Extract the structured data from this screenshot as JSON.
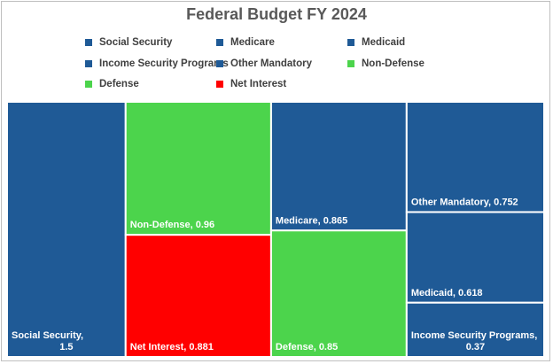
{
  "chart_data": {
    "type": "treemap",
    "title": "Federal Budget FY 2024",
    "legend_position": "top",
    "colors": {
      "mandatory": "#1f5a96",
      "discretionary": "#4cd44c",
      "interest": "#ff0000"
    },
    "series": [
      {
        "name": "Social Security",
        "value": 1.5,
        "label": "Social Security, 1.5",
        "color": "#1f5a96"
      },
      {
        "name": "Medicare",
        "value": 0.865,
        "label": "Medicare, 0.865",
        "color": "#1f5a96"
      },
      {
        "name": "Medicaid",
        "value": 0.618,
        "label": "Medicaid, 0.618",
        "color": "#1f5a96"
      },
      {
        "name": "Income Security Programs",
        "value": 0.37,
        "label": "Income Security Programs, 0.37",
        "color": "#1f5a96"
      },
      {
        "name": "Other Mandatory",
        "value": 0.752,
        "label": "Other Mandatory, 0.752",
        "color": "#1f5a96"
      },
      {
        "name": "Non-Defense",
        "value": 0.96,
        "label": "Non-Defense, 0.96",
        "color": "#4cd44c"
      },
      {
        "name": "Defense",
        "value": 0.85,
        "label": "Defense, 0.85",
        "color": "#4cd44c"
      },
      {
        "name": "Net Interest",
        "value": 0.881,
        "label": "Net Interest, 0.881",
        "color": "#ff0000"
      }
    ]
  }
}
